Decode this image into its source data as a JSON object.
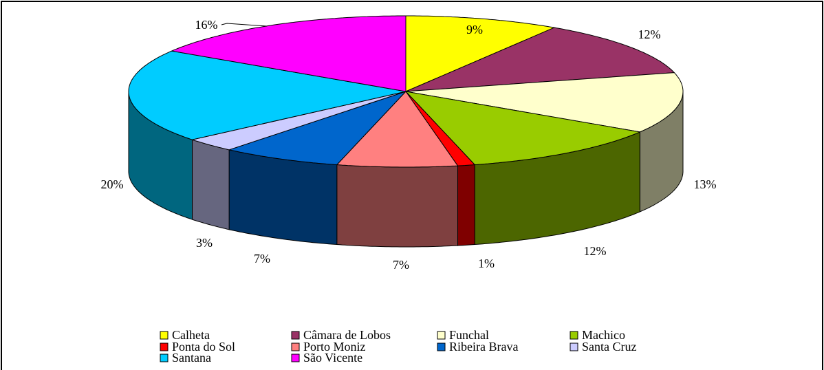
{
  "chart_data": {
    "type": "pie3d",
    "categories": [
      "Calheta",
      "Câmara de Lobos",
      "Funchal",
      "Machico",
      "Ponta do Sol",
      "Porto Moniz",
      "Ribeira Brava",
      "Santa Cruz",
      "Santana",
      "São Vicente"
    ],
    "values": [
      9,
      12,
      13,
      12,
      1,
      7,
      7,
      3,
      20,
      16
    ],
    "value_labels": [
      "9%",
      "12%",
      "13%",
      "12%",
      "1%",
      "7%",
      "7%",
      "3%",
      "20%",
      "16%"
    ],
    "colors": [
      "#ffff00",
      "#993366",
      "#ffffcc",
      "#99cc00",
      "#ff0000",
      "#ff8080",
      "#0066cc",
      "#ccccff",
      "#00ccff",
      "#ff00ff"
    ],
    "legend": "bottom"
  }
}
